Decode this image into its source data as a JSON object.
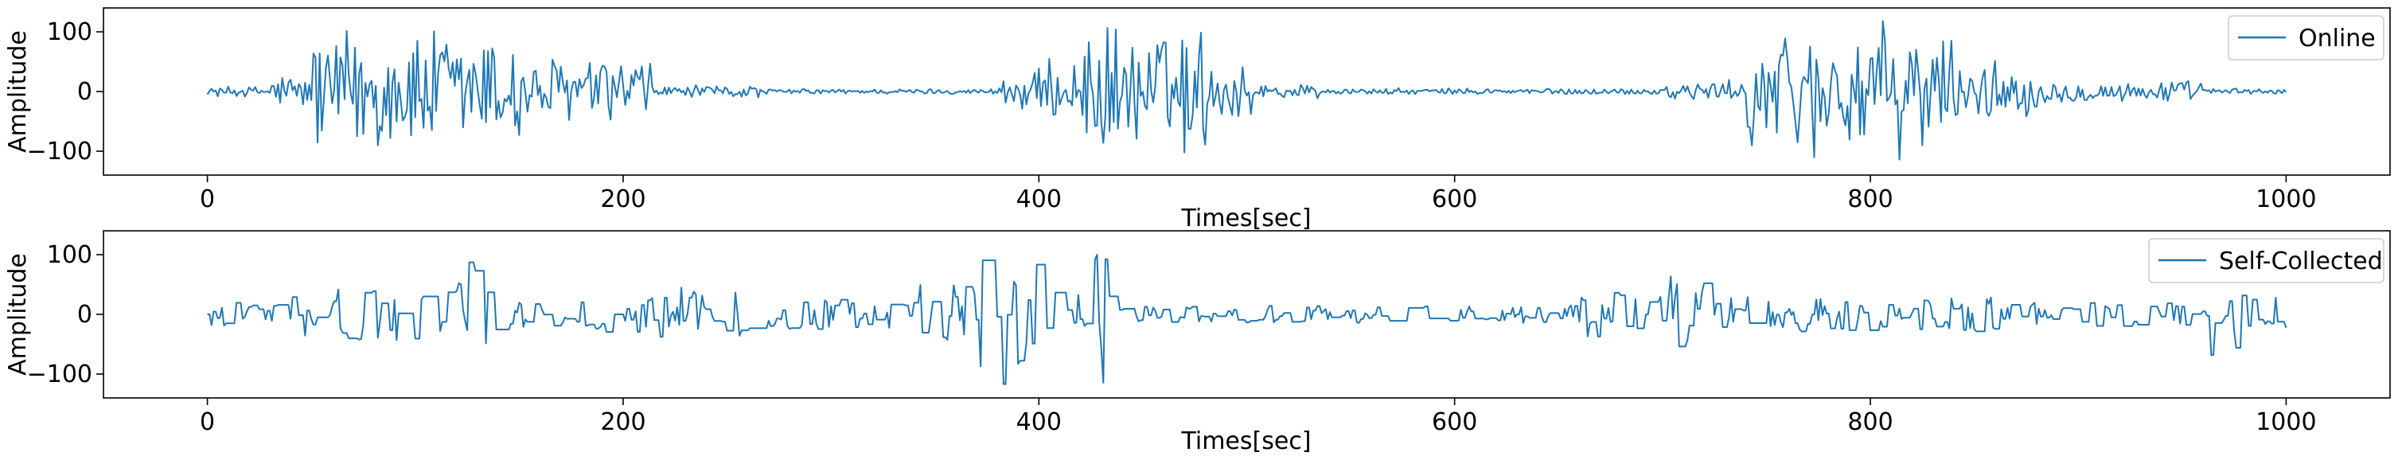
{
  "chart_data": [
    {
      "type": "line",
      "xlabel": "Times[sec]",
      "ylabel": "Amplitude",
      "xlim": [
        -50,
        1050
      ],
      "ylim": [
        -140,
        140
      ],
      "xticks": [
        0,
        200,
        400,
        600,
        800,
        1000
      ],
      "yticks": [
        -100,
        0,
        100
      ],
      "grid": false,
      "legend_position": "top-right",
      "color": "#1f77b4",
      "series": [
        {
          "name": "Online",
          "x_range": [
            0,
            1000
          ],
          "segments": [
            {
              "x": [
                0,
                30
              ],
              "amplitude": 10
            },
            {
              "x": [
                30,
                50
              ],
              "amplitude": 35
            },
            {
              "x": [
                50,
                150
              ],
              "amplitude": 120
            },
            {
              "x": [
                150,
                215
              ],
              "amplitude": 65
            },
            {
              "x": [
                215,
                265
              ],
              "amplitude": 12
            },
            {
              "x": [
                265,
                380
              ],
              "amplitude": 5
            },
            {
              "x": [
                380,
                400
              ],
              "amplitude": 40
            },
            {
              "x": [
                400,
                420
              ],
              "amplitude": 60
            },
            {
              "x": [
                420,
                480
              ],
              "amplitude": 120
            },
            {
              "x": [
                480,
                505
              ],
              "amplitude": 60
            },
            {
              "x": [
                505,
                535
              ],
              "amplitude": 15
            },
            {
              "x": [
                535,
                700
              ],
              "amplitude": 6
            },
            {
              "x": [
                700,
                740
              ],
              "amplitude": 20
            },
            {
              "x": [
                740,
                840
              ],
              "amplitude": 120
            },
            {
              "x": [
                840,
                880
              ],
              "amplitude": 55
            },
            {
              "x": [
                880,
                960
              ],
              "amplitude": 20
            },
            {
              "x": [
                960,
                1000
              ],
              "amplitude": 6
            }
          ]
        }
      ]
    },
    {
      "type": "line",
      "xlabel": "Times[sec]",
      "ylabel": "Amplitude",
      "xlim": [
        -50,
        1050
      ],
      "ylim": [
        -140,
        140
      ],
      "xticks": [
        0,
        200,
        400,
        600,
        800,
        1000
      ],
      "yticks": [
        -100,
        0,
        100
      ],
      "grid": false,
      "legend_position": "top-right",
      "color": "#1f77b4",
      "series": [
        {
          "name": "Self-Collected",
          "x_range": [
            0,
            1000
          ],
          "segments": [
            {
              "x": [
                0,
                40
              ],
              "amplitude": 20
            },
            {
              "x": [
                40,
                120
              ],
              "amplitude": 45
            },
            {
              "x": [
                120,
                140
              ],
              "amplitude": 90
            },
            {
              "x": [
                140,
                215
              ],
              "amplitude": 30
            },
            {
              "x": [
                215,
                270
              ],
              "amplitude": 45
            },
            {
              "x": [
                270,
                340
              ],
              "amplitude": 25
            },
            {
              "x": [
                340,
                370
              ],
              "amplitude": 50
            },
            {
              "x": [
                370,
                400
              ],
              "amplitude": 125
            },
            {
              "x": [
                400,
                420
              ],
              "amplitude": 40
            },
            {
              "x": [
                420,
                440
              ],
              "amplitude": 115
            },
            {
              "x": [
                440,
                660
              ],
              "amplitude": 15
            },
            {
              "x": [
                660,
                700
              ],
              "amplitude": 40
            },
            {
              "x": [
                700,
                720
              ],
              "amplitude": 80
            },
            {
              "x": [
                720,
                860
              ],
              "amplitude": 30
            },
            {
              "x": [
                860,
                960
              ],
              "amplitude": 20
            },
            {
              "x": [
                960,
                980
              ],
              "amplitude": 80
            },
            {
              "x": [
                980,
                1000
              ],
              "amplitude": 30
            }
          ]
        }
      ]
    }
  ]
}
